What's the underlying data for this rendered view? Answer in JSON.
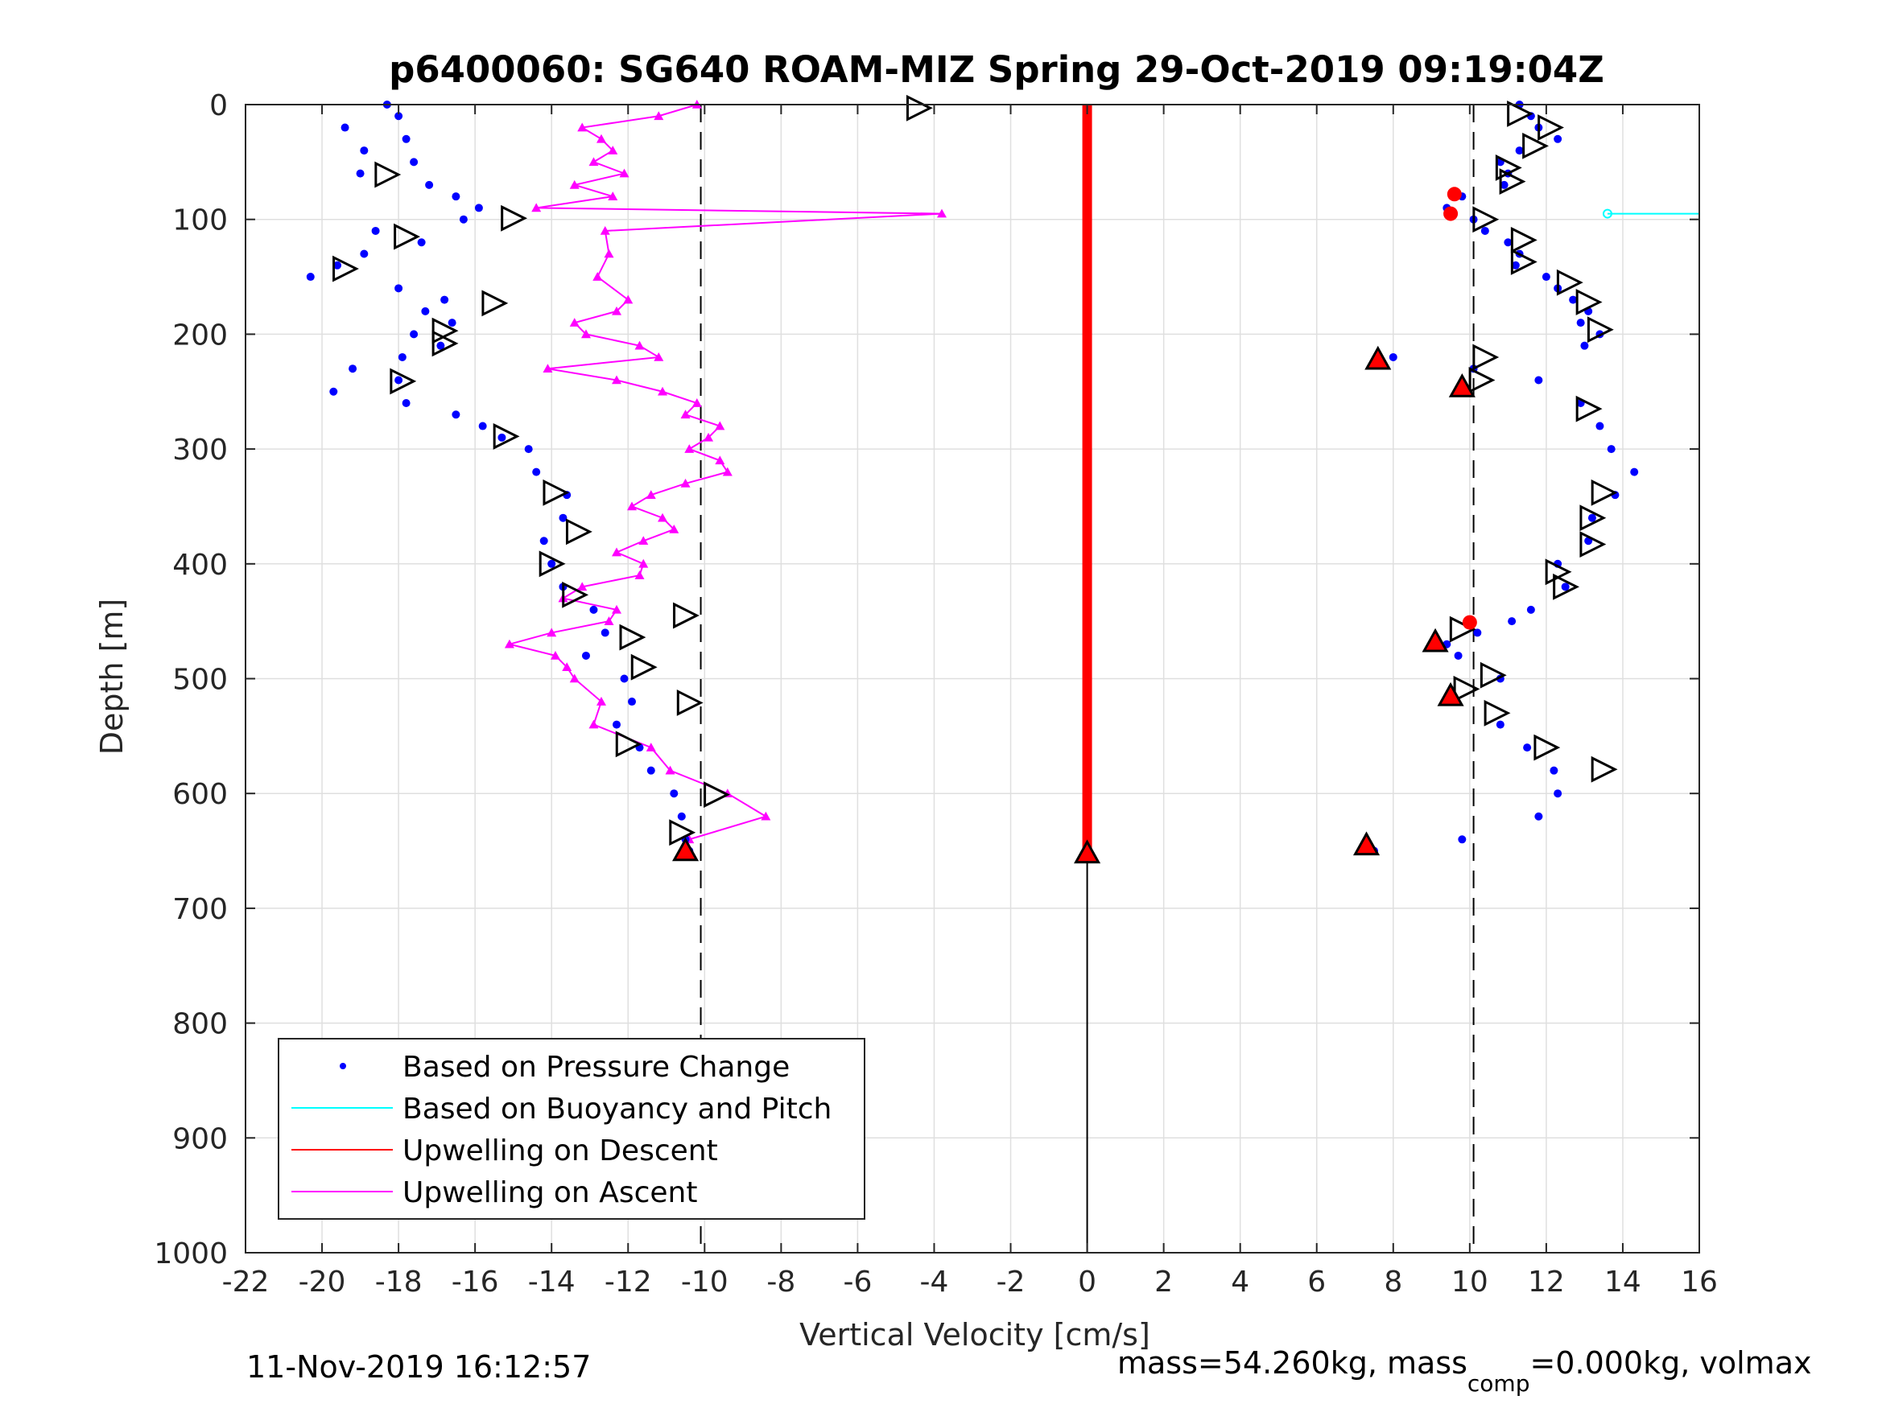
{
  "chart_data": {
    "type": "scatter",
    "title": "p6400060: SG640 ROAM-MIZ Spring 29-Oct-2019 09:19:04Z",
    "xlabel": "Vertical Velocity [cm/s]",
    "ylabel": "Depth [m]",
    "xlim": [
      -22,
      16
    ],
    "ylim": [
      0,
      1000
    ],
    "y_reversed": true,
    "grid": true,
    "x_ticks": [
      "-22",
      "-20",
      "-18",
      "-16",
      "-14",
      "-12",
      "-10",
      "-8",
      "-6",
      "-4",
      "-2",
      "0",
      "2",
      "4",
      "6",
      "8",
      "10",
      "12",
      "14",
      "16"
    ],
    "y_ticks": [
      "0",
      "100",
      "200",
      "300",
      "400",
      "500",
      "600",
      "700",
      "800",
      "900",
      "1000"
    ],
    "legend_position": "bottom-left",
    "reference_lines": [
      {
        "x": -10.1,
        "style": "dashed",
        "y_range": [
          0,
          1000
        ]
      },
      {
        "x": 10.1,
        "style": "dashed",
        "y_range": [
          0,
          1000
        ]
      },
      {
        "x": 0,
        "style": "solid",
        "y_range": [
          0,
          1000
        ]
      }
    ],
    "series": [
      {
        "name": "Based on Pressure Change",
        "color": "#0000ff",
        "marker": "dot",
        "descent": {
          "depth": [
            0,
            10,
            20,
            30,
            40,
            50,
            60,
            70,
            80,
            90,
            100,
            110,
            120,
            130,
            140,
            150,
            160,
            170,
            180,
            190,
            200,
            210,
            220,
            230,
            240,
            250,
            260,
            270,
            280,
            290,
            300,
            320,
            340,
            360,
            380,
            400,
            420,
            440,
            460,
            480,
            500,
            520,
            540,
            560,
            580,
            600,
            620,
            640,
            650
          ],
          "velocity": [
            -18.3,
            -18.0,
            -19.4,
            -17.8,
            -18.9,
            -17.6,
            -19.0,
            -17.2,
            -16.5,
            -15.9,
            -16.3,
            -18.6,
            -17.4,
            -18.9,
            -19.6,
            -20.3,
            -18.0,
            -16.8,
            -17.3,
            -16.6,
            -17.6,
            -16.9,
            -17.9,
            -19.2,
            -18.0,
            -19.7,
            -17.8,
            -16.5,
            -15.8,
            -15.3,
            -14.6,
            -14.4,
            -13.6,
            -13.7,
            -14.2,
            -14.0,
            -13.7,
            -12.9,
            -12.6,
            -13.1,
            -12.1,
            -11.9,
            -12.3,
            -11.7,
            -11.4,
            -10.8,
            -10.6,
            -10.5,
            -10.4
          ]
        },
        "ascent": {
          "depth": [
            650,
            640,
            620,
            600,
            580,
            560,
            540,
            520,
            500,
            480,
            470,
            460,
            450,
            440,
            420,
            400,
            380,
            360,
            340,
            320,
            300,
            280,
            260,
            240,
            230,
            220,
            210,
            200,
            190,
            180,
            170,
            160,
            150,
            140,
            130,
            120,
            110,
            100,
            95,
            90,
            80,
            70,
            60,
            50,
            40,
            30,
            20,
            10,
            0
          ],
          "velocity": [
            7.5,
            9.8,
            11.8,
            12.3,
            12.2,
            11.5,
            10.8,
            9.6,
            10.8,
            9.7,
            9.4,
            10.2,
            11.1,
            11.6,
            12.5,
            12.3,
            13.1,
            13.2,
            13.8,
            14.3,
            13.7,
            13.4,
            12.9,
            11.8,
            10.1,
            8.0,
            13.0,
            13.4,
            12.9,
            13.1,
            12.7,
            12.3,
            12.0,
            11.2,
            11.3,
            11.0,
            10.4,
            10.1,
            9.5,
            9.4,
            9.8,
            10.9,
            11.0,
            10.8,
            11.3,
            12.3,
            11.8,
            11.6,
            11.3
          ]
        }
      },
      {
        "name": "Based on Buoyancy and Pitch",
        "color": "#00ffff",
        "marker": "line",
        "depth": [
          95,
          95
        ],
        "velocity": [
          13.6,
          16
        ]
      },
      {
        "name": "Upwelling on Descent",
        "color": "#ff0000",
        "marker": "line",
        "depth": [
          0,
          650
        ],
        "velocity": [
          0,
          0
        ]
      },
      {
        "name": "Upwelling on Ascent",
        "color": "#ff00ff",
        "marker": "triangle",
        "depth": [
          0,
          10,
          20,
          30,
          40,
          50,
          60,
          70,
          80,
          90,
          95,
          110,
          130,
          150,
          170,
          180,
          190,
          200,
          210,
          220,
          230,
          240,
          250,
          260,
          270,
          280,
          290,
          300,
          310,
          320,
          330,
          340,
          350,
          360,
          370,
          380,
          390,
          400,
          410,
          420,
          430,
          440,
          450,
          460,
          470,
          480,
          490,
          500,
          520,
          540,
          560,
          580,
          600,
          620,
          640,
          650
        ],
        "velocity": [
          -10.2,
          -11.2,
          -13.2,
          -12.7,
          -12.4,
          -12.9,
          -12.1,
          -13.4,
          -12.4,
          -14.4,
          -3.8,
          -12.6,
          -12.5,
          -12.8,
          -12.0,
          -12.3,
          -13.4,
          -13.1,
          -11.7,
          -11.2,
          -14.1,
          -12.3,
          -11.1,
          -10.2,
          -10.5,
          -9.6,
          -9.9,
          -10.4,
          -9.6,
          -9.4,
          -10.5,
          -11.4,
          -11.9,
          -11.1,
          -10.8,
          -11.6,
          -12.3,
          -11.6,
          -11.7,
          -13.2,
          -13.7,
          -12.3,
          -12.5,
          -14.0,
          -15.1,
          -13.9,
          -13.6,
          -13.4,
          -12.7,
          -12.9,
          -11.4,
          -10.9,
          -9.4,
          -8.4,
          -10.4,
          -10.6
        ]
      }
    ],
    "markers": {
      "open_triangle_right": [
        {
          "velocity": -4.4,
          "depth": 3
        },
        {
          "velocity": -18.3,
          "depth": 61
        },
        {
          "velocity": -15.0,
          "depth": 99
        },
        {
          "velocity": -17.8,
          "depth": 115
        },
        {
          "velocity": -19.4,
          "depth": 143
        },
        {
          "velocity": -15.5,
          "depth": 173
        },
        {
          "velocity": -16.8,
          "depth": 197
        },
        {
          "velocity": -16.8,
          "depth": 208
        },
        {
          "velocity": -17.9,
          "depth": 241
        },
        {
          "velocity": -15.2,
          "depth": 289
        },
        {
          "velocity": -13.9,
          "depth": 338
        },
        {
          "velocity": -13.3,
          "depth": 372
        },
        {
          "velocity": -14.0,
          "depth": 400
        },
        {
          "velocity": -13.4,
          "depth": 427
        },
        {
          "velocity": -10.5,
          "depth": 445
        },
        {
          "velocity": -11.9,
          "depth": 464
        },
        {
          "velocity": -11.6,
          "depth": 490
        },
        {
          "velocity": -10.4,
          "depth": 521
        },
        {
          "velocity": -12.0,
          "depth": 557
        },
        {
          "velocity": -9.7,
          "depth": 601
        },
        {
          "velocity": -10.6,
          "depth": 634
        },
        {
          "velocity": 11.3,
          "depth": 8
        },
        {
          "velocity": 12.1,
          "depth": 20
        },
        {
          "velocity": 11.7,
          "depth": 36
        },
        {
          "velocity": 11.0,
          "depth": 55
        },
        {
          "velocity": 11.1,
          "depth": 67
        },
        {
          "velocity": 10.4,
          "depth": 100
        },
        {
          "velocity": 11.4,
          "depth": 118
        },
        {
          "velocity": 11.4,
          "depth": 137
        },
        {
          "velocity": 12.6,
          "depth": 155
        },
        {
          "velocity": 13.1,
          "depth": 172
        },
        {
          "velocity": 13.4,
          "depth": 196
        },
        {
          "velocity": 10.4,
          "depth": 220
        },
        {
          "velocity": 10.3,
          "depth": 240
        },
        {
          "velocity": 13.1,
          "depth": 265
        },
        {
          "velocity": 13.5,
          "depth": 338
        },
        {
          "velocity": 13.2,
          "depth": 360
        },
        {
          "velocity": 13.2,
          "depth": 383
        },
        {
          "velocity": 12.3,
          "depth": 407
        },
        {
          "velocity": 12.5,
          "depth": 420
        },
        {
          "velocity": 9.8,
          "depth": 457
        },
        {
          "velocity": 10.6,
          "depth": 497
        },
        {
          "velocity": 9.9,
          "depth": 509
        },
        {
          "velocity": 10.7,
          "depth": 530
        },
        {
          "velocity": 12.0,
          "depth": 560
        },
        {
          "velocity": 13.5,
          "depth": 579
        }
      ],
      "filled_red_triangle": [
        {
          "velocity": -10.5,
          "depth": 650
        },
        {
          "velocity": 0,
          "depth": 652
        },
        {
          "velocity": 7.3,
          "depth": 645
        },
        {
          "velocity": 7.6,
          "depth": 222
        },
        {
          "velocity": 9.8,
          "depth": 246
        },
        {
          "velocity": 9.1,
          "depth": 468
        },
        {
          "velocity": 9.5,
          "depth": 515
        }
      ],
      "filled_red_circle": [
        {
          "velocity": 9.6,
          "depth": 78
        },
        {
          "velocity": 9.5,
          "depth": 95
        },
        {
          "velocity": 10.0,
          "depth": 451
        }
      ]
    }
  },
  "footer": {
    "timestamp": "11-Nov-2019 16:12:57",
    "mass_prefix": "mass=54.260kg, mass",
    "mass_sub": "comp",
    "mass_suffix": "=0.000kg, volmax"
  }
}
